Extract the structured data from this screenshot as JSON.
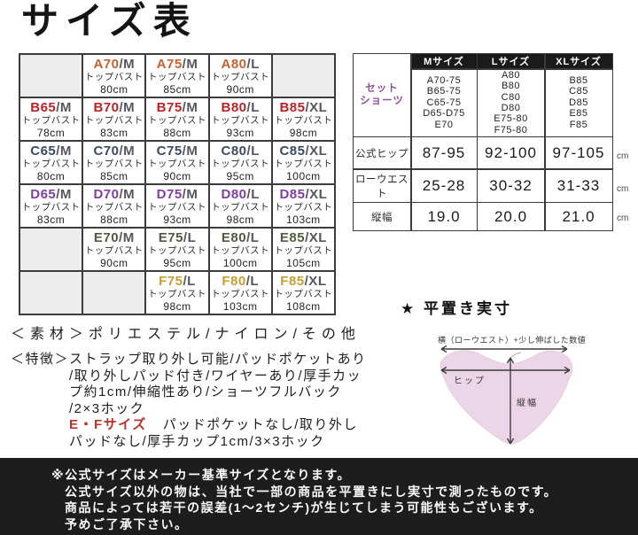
{
  "page_title": "サイズ表",
  "size_grid": {
    "bust_label": "トップバスト",
    "colors": {
      "A": "#c7622f",
      "B": "#bb2228",
      "C": "#3b4a61",
      "D": "#7f3f9f",
      "E": "#515c3c",
      "F": "#c49f2f"
    },
    "rows": [
      {
        "letter": "A",
        "cells": [
          null,
          {
            "main": "A70",
            "suffix": "/M",
            "bust": "80cm"
          },
          {
            "main": "A75",
            "suffix": "/M",
            "bust": "85cm"
          },
          {
            "main": "A80",
            "suffix": "/L",
            "bust": "90cm"
          },
          null
        ]
      },
      {
        "letter": "B",
        "cells": [
          {
            "main": "B65",
            "suffix": "/M",
            "bust": "78cm"
          },
          {
            "main": "B70",
            "suffix": "/M",
            "bust": "83cm"
          },
          {
            "main": "B75",
            "suffix": "/M",
            "bust": "88cm"
          },
          {
            "main": "B80",
            "suffix": "/L",
            "bust": "93cm"
          },
          {
            "main": "B85",
            "suffix": "/XL",
            "bust": "98cm"
          }
        ]
      },
      {
        "letter": "C",
        "cells": [
          {
            "main": "C65",
            "suffix": "/M",
            "bust": "80cm"
          },
          {
            "main": "C70",
            "suffix": "/M",
            "bust": "85cm"
          },
          {
            "main": "C75",
            "suffix": "/M",
            "bust": "90cm"
          },
          {
            "main": "C80",
            "suffix": "/L",
            "bust": "95cm"
          },
          {
            "main": "C85",
            "suffix": "/XL",
            "bust": "100cm"
          }
        ]
      },
      {
        "letter": "D",
        "cells": [
          {
            "main": "D65",
            "suffix": "/M",
            "bust": "83cm"
          },
          {
            "main": "D70",
            "suffix": "/M",
            "bust": "88cm"
          },
          {
            "main": "D75",
            "suffix": "/M",
            "bust": "93cm"
          },
          {
            "main": "D80",
            "suffix": "/L",
            "bust": "98cm"
          },
          {
            "main": "D85",
            "suffix": "/XL",
            "bust": "103cm"
          }
        ]
      },
      {
        "letter": "E",
        "cells": [
          null,
          {
            "main": "E70",
            "suffix": "/M",
            "bust": "90cm"
          },
          {
            "main": "E75",
            "suffix": "/L",
            "bust": "95cm"
          },
          {
            "main": "E80",
            "suffix": "/L",
            "bust": "100cm"
          },
          {
            "main": "E85",
            "suffix": "/XL",
            "bust": "105cm"
          }
        ]
      },
      {
        "letter": "F",
        "cells": [
          null,
          null,
          {
            "main": "F75",
            "suffix": "/L",
            "bust": "98cm"
          },
          {
            "main": "F80",
            "suffix": "/L",
            "bust": "103cm"
          },
          {
            "main": "F85",
            "suffix": "/XL",
            "bust": "108cm"
          }
        ]
      }
    ]
  },
  "shorts_table": {
    "set_shorts": {
      "label_lines": [
        "セット",
        "ショーツ"
      ],
      "m": [
        "A70-75",
        "B65-75",
        "C65-75",
        "D65-D75",
        "E70"
      ],
      "l": [
        "A80",
        "B80",
        "C80",
        "D80",
        "E75-80",
        "F75-80"
      ],
      "xl": [
        "B85",
        "C85",
        "D85",
        "E85",
        "F85"
      ]
    },
    "col_headers": [
      "Mサイズ",
      "Lサイズ",
      "XLサイズ"
    ],
    "rows": [
      {
        "label": "公式ヒップ",
        "m": "87-95",
        "l": "92-100",
        "xl": "97-105",
        "unit": "cm"
      },
      {
        "label": "ローウエスト",
        "m": "25-28",
        "l": "30-32",
        "xl": "31-33",
        "unit": "cm"
      },
      {
        "label": "縦幅",
        "m": "19.0",
        "l": "20.0",
        "xl": "21.0",
        "unit": "cm"
      }
    ]
  },
  "material": {
    "label": "＜素材＞",
    "text": "ポリエステル/ナイロン/その他"
  },
  "features": {
    "label": "＜特徴＞",
    "line1": "ストラップ取り外し可能/パッドポケットあり",
    "line2": "/取り外しパッド付き/ワイヤーあり/厚手カッ",
    "line3": "プ約1cm/伸縮性あり/ショーツフルバック",
    "line4": "/2×3ホック",
    "ef_label": "E・Fサイズ",
    "ef_line1": "パッドポケットなし/取り外し",
    "ef_line2": "パッドなし/厚手カップ1cm/3×3ホック"
  },
  "flat_measure": {
    "title": "★ 平置き実寸",
    "top_label": "横（ローウエスト）+少し伸ばした数値",
    "hip_label": "ヒップ",
    "height_label": "縦幅",
    "panty_color": "#ecd5e6"
  },
  "footer": {
    "lines": [
      "※公式サイズはメーカー基準サイズとなります。",
      "公式サイズ以外の物は、当社で一部の商品を平置きにし実寸で測ったものです。",
      "商品によっては若干の誤差(1～2センチ)が生じてしまう可能性もございます。",
      "予めご了承下さい。"
    ]
  }
}
